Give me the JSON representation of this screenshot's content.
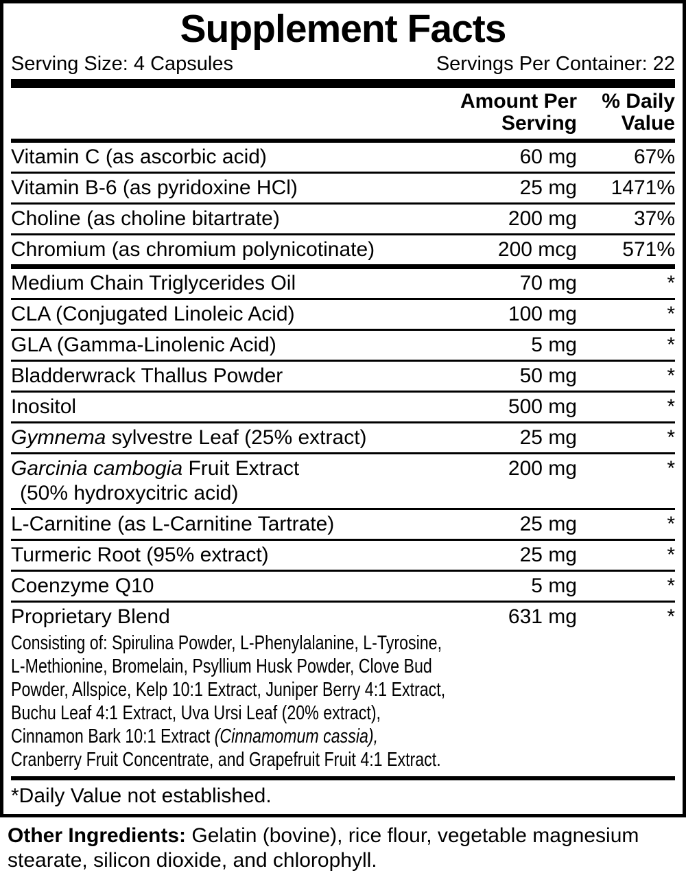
{
  "colors": {
    "background": "#ffffff",
    "text": "#000000"
  },
  "label": {
    "title": "Supplement Facts",
    "serving_size": "Serving Size: 4 Capsules",
    "servings_per_container": "Servings Per Container: 22",
    "columns": {
      "amount": [
        "Amount Per",
        "Serving"
      ],
      "daily_value": [
        "% Daily",
        "Value"
      ]
    },
    "nutrients": [
      {
        "parts": [
          {
            "text": "Vitamin C (as ascorbic acid)"
          }
        ],
        "amount": "60 mg",
        "dv": "67%"
      },
      {
        "parts": [
          {
            "text": "Vitamin B-6 (as pyridoxine HCl)"
          }
        ],
        "amount": "25 mg",
        "dv": "1471%"
      },
      {
        "parts": [
          {
            "text": "Choline (as choline bitartrate)"
          }
        ],
        "amount": "200 mg",
        "dv": "37%"
      },
      {
        "parts": [
          {
            "text": "Chromium (as chromium polynicotinate)"
          }
        ],
        "amount": "200 mcg",
        "dv": "571%"
      },
      {
        "parts": [
          {
            "text": "Medium Chain Triglycerides Oil"
          }
        ],
        "amount": "70 mg",
        "dv": "*",
        "divider_before": "medium"
      },
      {
        "parts": [
          {
            "text": "CLA (Conjugated Linoleic Acid)"
          }
        ],
        "amount": "100 mg",
        "dv": "*"
      },
      {
        "parts": [
          {
            "text": "GLA (Gamma-Linolenic Acid)"
          }
        ],
        "amount": "5 mg",
        "dv": "*"
      },
      {
        "parts": [
          {
            "text": "Bladderwrack Thallus Powder"
          }
        ],
        "amount": "50 mg",
        "dv": "*"
      },
      {
        "parts": [
          {
            "text": "Inositol"
          }
        ],
        "amount": "500 mg",
        "dv": "*"
      },
      {
        "parts": [
          {
            "text": "Gymnema",
            "italic": true
          },
          {
            "text": " sylvestre Leaf (25% extract)"
          }
        ],
        "amount": "25 mg",
        "dv": "*"
      },
      {
        "parts": [
          {
            "text": "Garcinia cambogia",
            "italic": true
          },
          {
            "text": " Fruit Extract"
          }
        ],
        "subline": "(50% hydroxycitric acid)",
        "amount": "200 mg",
        "dv": "*"
      },
      {
        "parts": [
          {
            "text": "L-Carnitine (as L-Carnitine Tartrate)"
          }
        ],
        "amount": "25 mg",
        "dv": "*"
      },
      {
        "parts": [
          {
            "text": "Turmeric Root (95% extract)"
          }
        ],
        "amount": "25 mg",
        "dv": "*"
      },
      {
        "parts": [
          {
            "text": "Coenzyme Q10"
          }
        ],
        "amount": "5 mg",
        "dv": "*"
      },
      {
        "parts": [
          {
            "text": "Proprietary Blend"
          }
        ],
        "amount": "631 mg",
        "dv": "*",
        "description_lines": [
          [
            {
              "text": "Consisting of: Spirulina Powder, L-Phenylalanine, L-Tyrosine,"
            }
          ],
          [
            {
              "text": "L-Methionine, Bromelain, Psyllium Husk Powder, Clove Bud"
            }
          ],
          [
            {
              "text": "Powder, Allspice, Kelp 10:1 Extract, Juniper Berry 4:1 Extract,"
            }
          ],
          [
            {
              "text": "Buchu Leaf 4:1 Extract, Uva Ursi Leaf (20% extract),"
            }
          ],
          [
            {
              "text": "Cinnamon Bark 10:1 Extract "
            },
            {
              "text": "(Cinnamomum cassia),",
              "italic": true
            }
          ],
          [
            {
              "text": "Cranberry Fruit Concentrate, and Grapefruit Fruit 4:1 Extract."
            }
          ]
        ]
      }
    ],
    "footnote": "*Daily Value not established.",
    "other_ingredients_lines": [
      [
        {
          "text": "Other Ingredients:",
          "bold": true
        },
        {
          "text": " Gelatin (bovine), rice flour, vegetable magnesium"
        }
      ],
      [
        {
          "text": "stearate, silicon dioxide, and chlorophyll."
        }
      ]
    ]
  }
}
